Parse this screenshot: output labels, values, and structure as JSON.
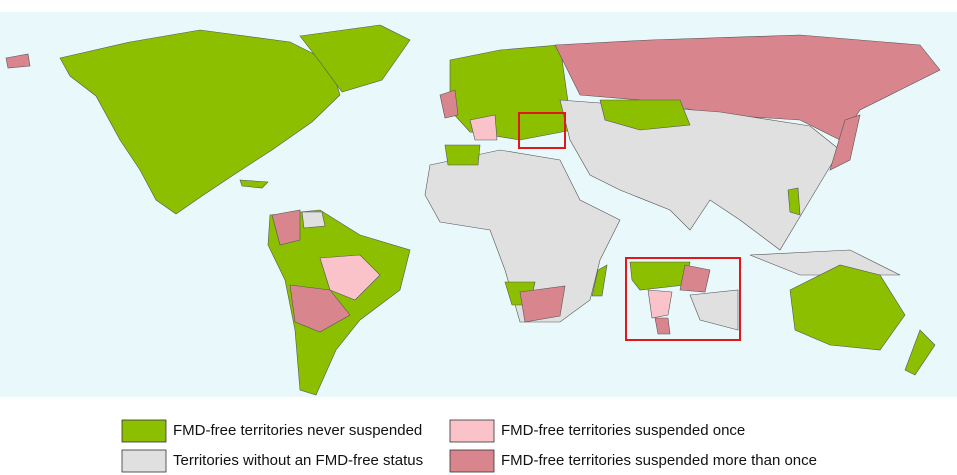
{
  "legend": {
    "items": [
      {
        "label": "FMD-free territories never suspended",
        "color": "#8cbf00"
      },
      {
        "label": "FMD-free territories suspended once",
        "color": "#fac3c9"
      },
      {
        "label": "Territories without an FMD-free status",
        "color": "#e0e0e0"
      },
      {
        "label": "FMD-free territories suspended more than once",
        "color": "#d9858e"
      }
    ]
  }
}
